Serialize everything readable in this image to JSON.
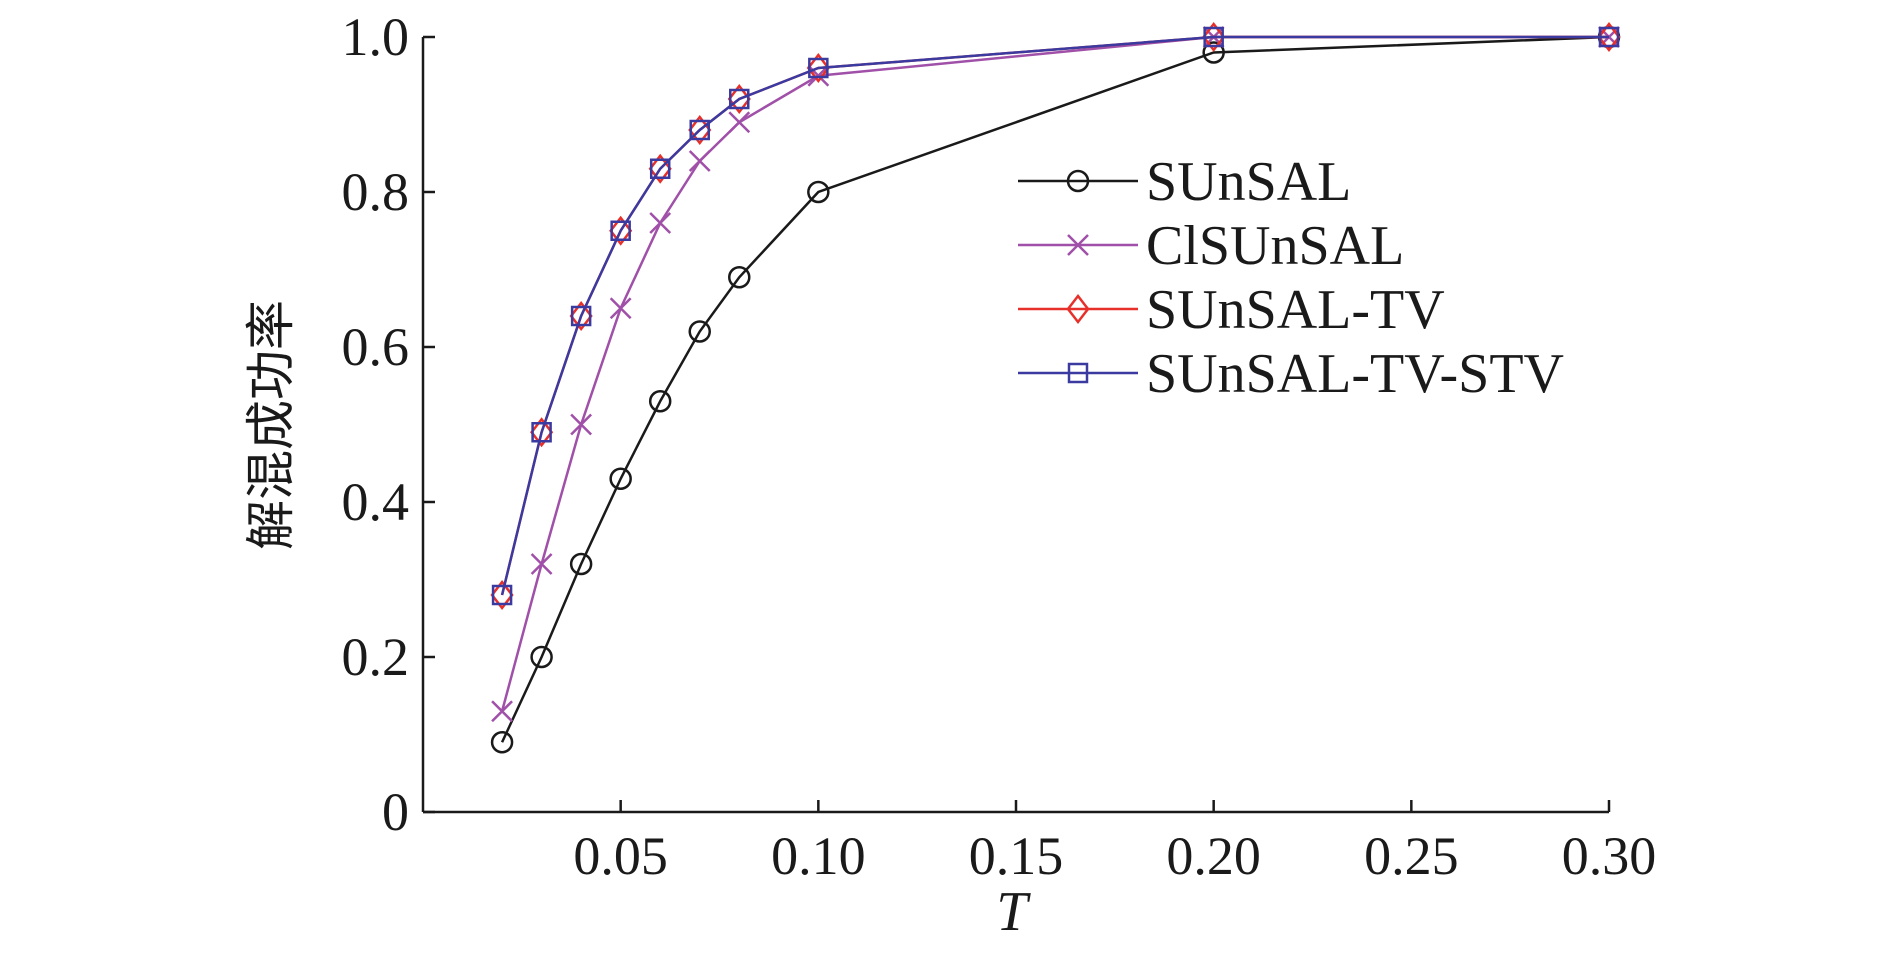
{
  "chart_data": {
    "type": "line",
    "xlabel": "T",
    "ylabel": "解混成功率",
    "xlim": [
      0,
      0.3
    ],
    "ylim": [
      0,
      1.0
    ],
    "xticks": [
      0.05,
      0.1,
      0.15,
      0.2,
      0.25,
      0.3
    ],
    "xtick_labels": [
      "0.05",
      "0.10",
      "0.15",
      "0.20",
      "0.25",
      "0.30"
    ],
    "yticks": [
      0,
      0.2,
      0.4,
      0.6,
      0.8,
      1.0
    ],
    "ytick_labels": [
      "0",
      "0.2",
      "0.4",
      "0.6",
      "0.8",
      "1.0"
    ],
    "x": [
      0.02,
      0.03,
      0.04,
      0.05,
      0.06,
      0.07,
      0.08,
      0.1,
      0.2,
      0.3
    ],
    "legend_position": "center-right",
    "grid": false,
    "series": [
      {
        "name": "SUnSAL",
        "color": "#1a1a1a",
        "marker": "circle",
        "values": [
          0.09,
          0.2,
          0.32,
          0.43,
          0.53,
          0.62,
          0.69,
          0.8,
          0.98,
          1.0
        ]
      },
      {
        "name": "ClSUnSAL",
        "color": "#a050a8",
        "marker": "x",
        "values": [
          0.13,
          0.32,
          0.5,
          0.65,
          0.76,
          0.84,
          0.89,
          0.95,
          1.0,
          1.0
        ]
      },
      {
        "name": "SUnSAL-TV",
        "color": "#e8302a",
        "marker": "diamond",
        "values": [
          0.28,
          0.49,
          0.64,
          0.75,
          0.83,
          0.88,
          0.92,
          0.96,
          1.0,
          1.0
        ]
      },
      {
        "name": "SUnSAL-TV-STV",
        "color": "#3a3aa0",
        "marker": "square",
        "values": [
          0.28,
          0.49,
          0.64,
          0.75,
          0.83,
          0.88,
          0.92,
          0.96,
          1.0,
          1.0
        ]
      }
    ]
  }
}
